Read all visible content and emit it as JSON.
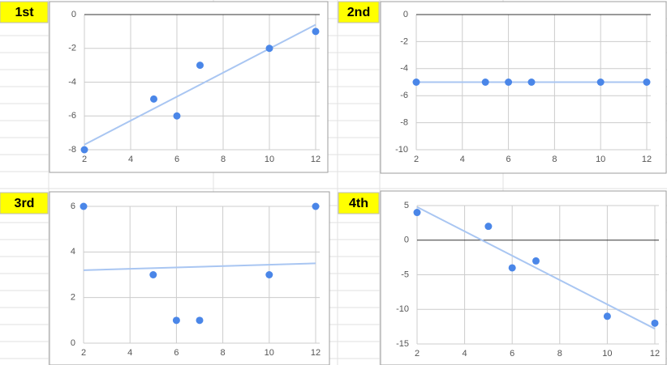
{
  "cells": [
    "1st",
    "2nd",
    "3rd",
    "4th"
  ],
  "chart_data": [
    {
      "type": "scatter",
      "x": [
        2,
        5,
        6,
        7,
        10,
        12
      ],
      "values": [
        -8,
        -5,
        -6,
        -3,
        -2,
        -1
      ],
      "color": "#4a86e8",
      "trendline": {
        "x": [
          2,
          12
        ],
        "y": [
          -7.7,
          -0.6
        ],
        "color": "#a9c6f2"
      },
      "xlim": [
        2,
        12
      ],
      "xticks": [
        2,
        4,
        6,
        8,
        10,
        12
      ],
      "ylim": [
        -8,
        0
      ],
      "yticks": [
        0,
        -2,
        -4,
        -6,
        -8
      ],
      "grid": true
    },
    {
      "type": "scatter",
      "x": [
        2,
        5,
        6,
        7,
        10,
        12
      ],
      "values": [
        -5,
        -5,
        -5,
        -5,
        -5,
        -5
      ],
      "color": "#4a86e8",
      "trendline": {
        "x": [
          2,
          12
        ],
        "y": [
          -5,
          -5
        ],
        "color": "#a9c6f2"
      },
      "xlim": [
        2,
        12
      ],
      "xticks": [
        2,
        4,
        6,
        8,
        10,
        12
      ],
      "ylim": [
        -10,
        0
      ],
      "yticks": [
        0,
        -2,
        -4,
        -6,
        -8,
        -10
      ],
      "grid": true
    },
    {
      "type": "scatter",
      "x": [
        2,
        5,
        6,
        7,
        10,
        12
      ],
      "values": [
        6,
        3,
        1,
        1,
        3,
        6
      ],
      "color": "#4a86e8",
      "trendline": {
        "x": [
          2,
          12
        ],
        "y": [
          3.2,
          3.5
        ],
        "color": "#a9c6f2"
      },
      "xlim": [
        2,
        12
      ],
      "xticks": [
        2,
        4,
        6,
        8,
        10,
        12
      ],
      "ylim": [
        0,
        6
      ],
      "yticks": [
        6,
        4,
        2,
        0
      ],
      "grid": true
    },
    {
      "type": "scatter",
      "x": [
        2,
        5,
        6,
        7,
        10,
        12
      ],
      "values": [
        4,
        2,
        -4,
        -3,
        -11,
        -12
      ],
      "color": "#4a86e8",
      "trendline": {
        "x": [
          2,
          12
        ],
        "y": [
          4.8,
          -12.8
        ],
        "color": "#a9c6f2"
      },
      "xlim": [
        2,
        12
      ],
      "xticks": [
        2,
        4,
        6,
        8,
        10,
        12
      ],
      "ylim": [
        -15,
        5
      ],
      "yticks": [
        5,
        0,
        -5,
        -10,
        -15
      ],
      "grid": true
    }
  ]
}
